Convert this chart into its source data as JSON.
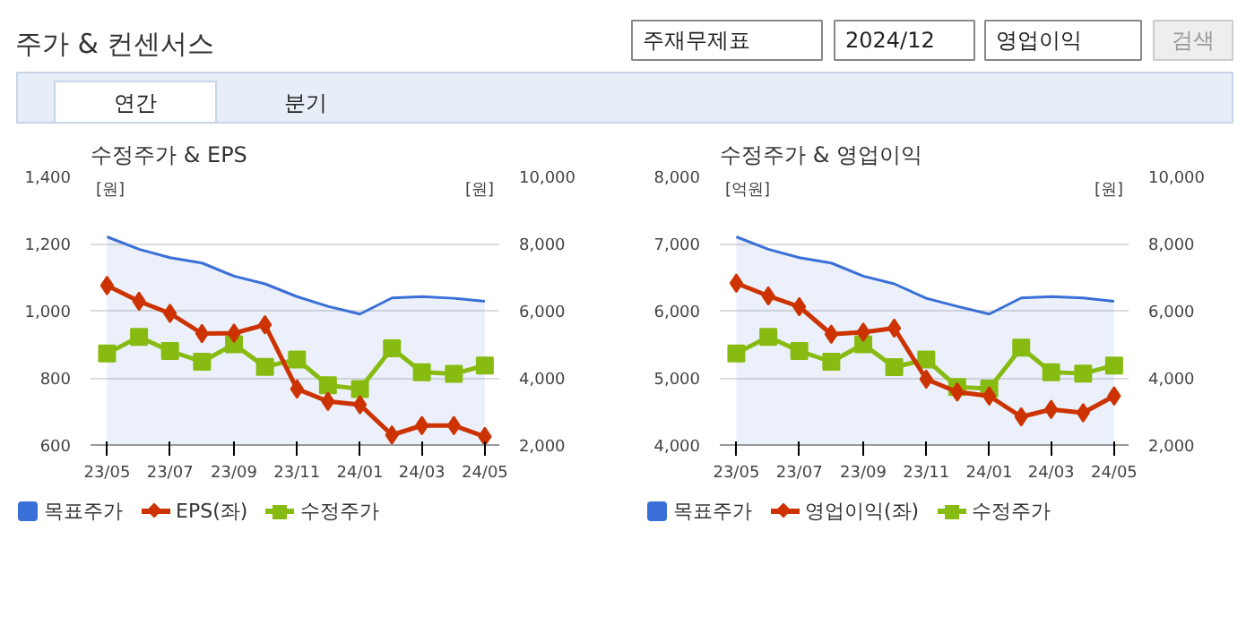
{
  "chart_data": [
    {
      "type": "other",
      "title": "주가 & 컨센서스",
      "annotations": [
        "주재무제표",
        "2024/12",
        "영업이익",
        "검색",
        "연간",
        "분기"
      ]
    },
    {
      "type": "line",
      "title": "수정주가 & EPS",
      "ylabel": "[원]",
      "y2label": "[원]",
      "x": [
        "2023-05",
        "2023-06",
        "2023-07",
        "2023-08",
        "2023-09",
        "2023-10",
        "2023-11",
        "2023-12",
        "2024-01",
        "2024-02",
        "2024-03",
        "2024-04",
        "2024-05"
      ],
      "xlim": [
        "2023-04-15",
        "2024-05-15"
      ],
      "xticks": [
        {
          "value": "2023-05",
          "label": "23/05"
        },
        {
          "value": "2023-07",
          "label": "23/07"
        },
        {
          "value": "2023-09",
          "label": "23/09"
        },
        {
          "value": "2023-11",
          "label": "23/11"
        },
        {
          "value": "2024-01",
          "label": "24/01"
        },
        {
          "value": "2024-03",
          "label": "24/03"
        },
        {
          "value": "2024-05",
          "label": "24/05"
        }
      ],
      "ylim": [
        600,
        1400
      ],
      "yticks": [
        600,
        800,
        {
          "value": 1000,
          "label": "1,000"
        },
        {
          "value": 1200,
          "label": "1,200"
        },
        {
          "value": 1400,
          "label": "1,400"
        }
      ],
      "y2lim": [
        2000,
        10000
      ],
      "y2ticks": [
        {
          "value": 2000,
          "label": "2,000"
        },
        {
          "value": 4000,
          "label": "4,000"
        },
        {
          "value": 6000,
          "label": "6,000"
        },
        {
          "value": 8000,
          "label": "8,000"
        },
        {
          "value": 10000,
          "label": "10,000"
        }
      ],
      "grid": "y",
      "legend": "bottom",
      "series": [
        {
          "name": "목표주가",
          "type": "area",
          "axis": "y2",
          "color": "#3a6fd8",
          "marker": "none",
          "values": [
            8200,
            7830,
            7580,
            7420,
            7030,
            6800,
            6420,
            6130,
            5900,
            6380,
            6420,
            6370,
            6280
          ]
        },
        {
          "name": "EPS(좌)",
          "type": "line",
          "color": "#cc3300",
          "marker": "diamond",
          "values": [
            1075,
            1028,
            992,
            932,
            933,
            958,
            767,
            730,
            720,
            630,
            658,
            658,
            625
          ]
        },
        {
          "name": "수정주가",
          "type": "line",
          "axis": "y2",
          "color": "#88bb11",
          "marker": "square",
          "values": [
            4730,
            5220,
            4800,
            4480,
            5000,
            4330,
            4550,
            3780,
            3670,
            4880,
            4170,
            4120,
            4370
          ]
        }
      ]
    },
    {
      "type": "line",
      "title": "수정주가 & 영업이익",
      "ylabel": "[억원]",
      "y2label": "[원]",
      "x": [
        "2023-05",
        "2023-06",
        "2023-07",
        "2023-08",
        "2023-09",
        "2023-10",
        "2023-11",
        "2023-12",
        "2024-01",
        "2024-02",
        "2024-03",
        "2024-04",
        "2024-05"
      ],
      "xlim": [
        "2023-04-15",
        "2024-05-15"
      ],
      "xticks": [
        {
          "value": "2023-05",
          "label": "23/05"
        },
        {
          "value": "2023-07",
          "label": "23/07"
        },
        {
          "value": "2023-09",
          "label": "23/09"
        },
        {
          "value": "2023-11",
          "label": "23/11"
        },
        {
          "value": "2024-01",
          "label": "24/01"
        },
        {
          "value": "2024-03",
          "label": "24/03"
        },
        {
          "value": "2024-05",
          "label": "24/05"
        }
      ],
      "ylim": [
        4000,
        8000
      ],
      "yticks": [
        {
          "value": 4000,
          "label": "4,000"
        },
        {
          "value": 5000,
          "label": "5,000"
        },
        {
          "value": 6000,
          "label": "6,000"
        },
        {
          "value": 7000,
          "label": "7,000"
        },
        {
          "value": 8000,
          "label": "8,000"
        }
      ],
      "y2lim": [
        2000,
        10000
      ],
      "y2ticks": [
        {
          "value": 2000,
          "label": "2,000"
        },
        {
          "value": 4000,
          "label": "4,000"
        },
        {
          "value": 6000,
          "label": "6,000"
        },
        {
          "value": 8000,
          "label": "8,000"
        },
        {
          "value": 10000,
          "label": "10,000"
        }
      ],
      "grid": "y",
      "legend": "bottom",
      "series": [
        {
          "name": "목표주가",
          "type": "area",
          "axis": "y2",
          "color": "#3a6fd8",
          "marker": "none",
          "values": [
            8200,
            7830,
            7580,
            7420,
            7030,
            6800,
            6370,
            6130,
            5900,
            6380,
            6420,
            6380,
            6280
          ]
        },
        {
          "name": "영업이익(좌)",
          "type": "line",
          "color": "#cc3300",
          "marker": "diamond",
          "values": [
            6410,
            6220,
            6060,
            5650,
            5680,
            5740,
            4980,
            4790,
            4730,
            4420,
            4530,
            4480,
            4730
          ]
        },
        {
          "name": "수정주가",
          "type": "line",
          "axis": "y2",
          "color": "#88bb11",
          "marker": "square",
          "values": [
            4730,
            5220,
            4800,
            4480,
            5000,
            4320,
            4550,
            3730,
            3680,
            4900,
            4170,
            4130,
            4370
          ]
        }
      ]
    }
  ]
}
